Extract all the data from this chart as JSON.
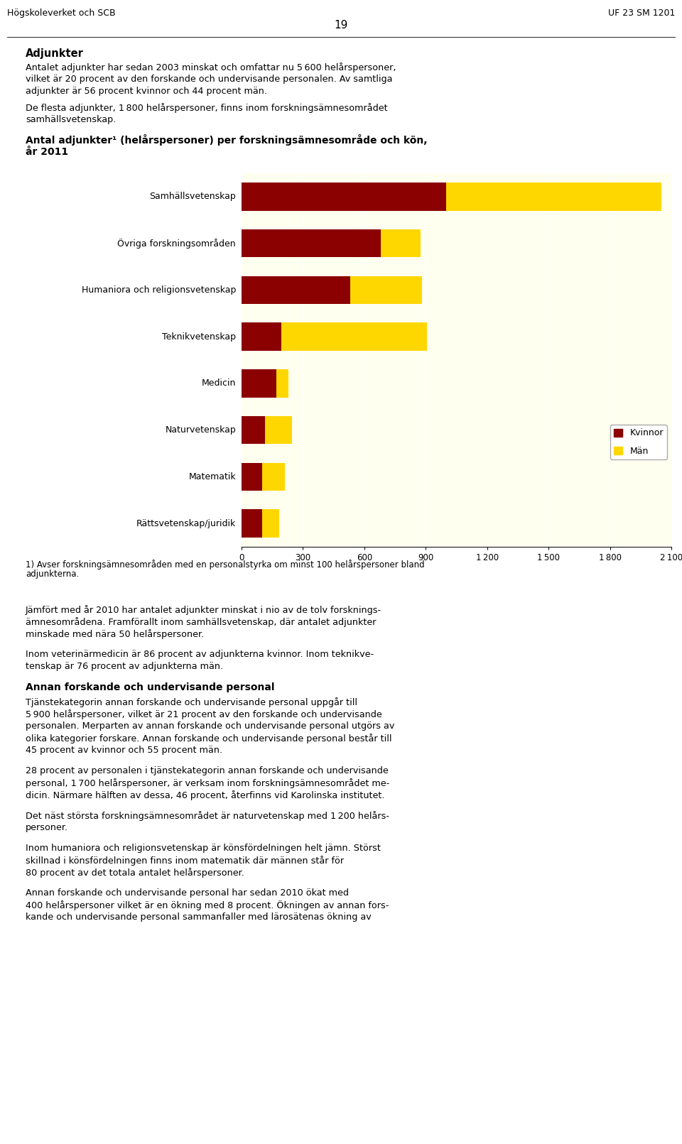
{
  "categories": [
    "Samhällsvetenskap",
    "Övriga forskningsområden",
    "Humaniora och religionsvetenskap",
    "Teknikvetenskap",
    "Medicin",
    "Naturvetenskap",
    "Matematik",
    "Rättsvetenskap/juridik"
  ],
  "kvinnor": [
    1000,
    680,
    530,
    195,
    170,
    115,
    100,
    100
  ],
  "man": [
    1050,
    195,
    350,
    710,
    60,
    130,
    110,
    85
  ],
  "color_kvinnor": "#8B0000",
  "color_man": "#FFD700",
  "plot_bg_color": "#FFFFF0",
  "xlim": [
    0,
    2100
  ],
  "xticks": [
    0,
    300,
    600,
    900,
    1200,
    1500,
    1800,
    2100
  ],
  "bar_height": 0.6,
  "header_left": "Högskoleverket och SCB",
  "header_center": "19",
  "header_right": "UF 23 SM 1201"
}
